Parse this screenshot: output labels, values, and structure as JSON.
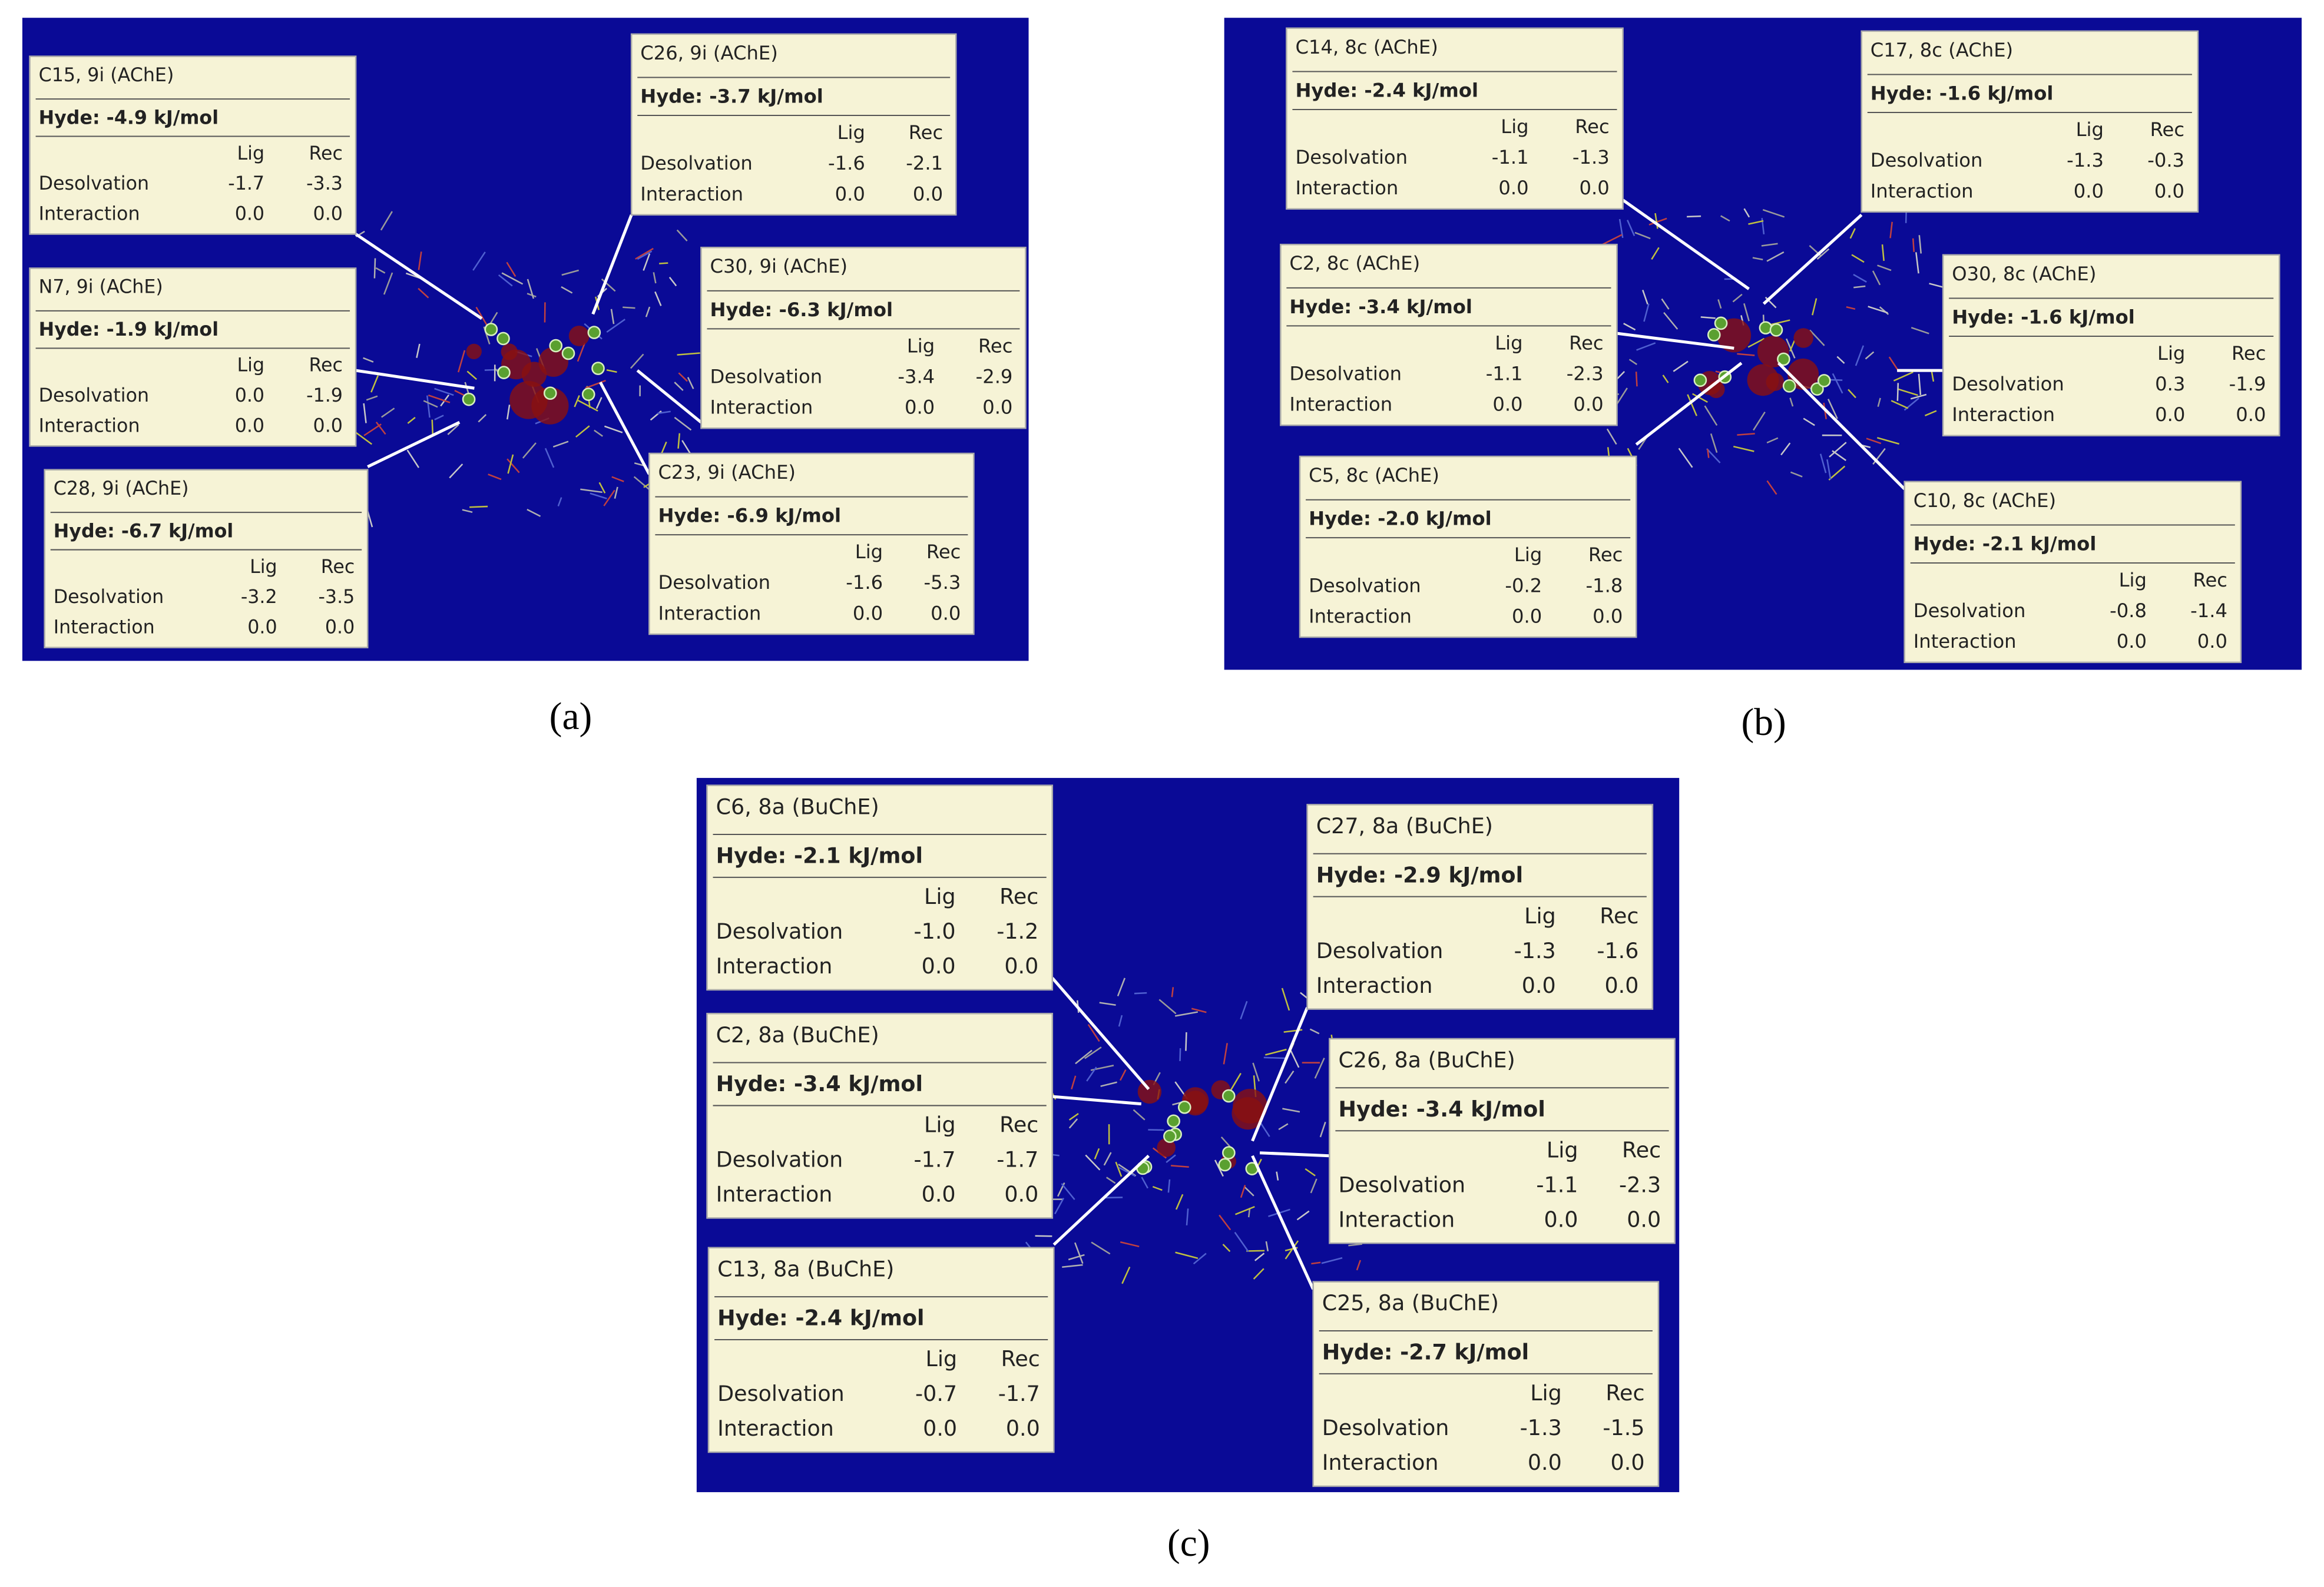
{
  "panels": [
    {
      "label": "(a)",
      "boxes": [
        {
          "title": "C15, 9i (AChE)",
          "hyde": "Hyde: -4.9 kJ/mol",
          "header": [
            "Lig",
            "Rec"
          ],
          "rows": [
            [
              "Desolvation",
              "-1.7",
              "-3.3"
            ],
            [
              "Interaction",
              "0.0",
              "0.0"
            ]
          ]
        },
        {
          "title": "N7, 9i (AChE)",
          "hyde": "Hyde: -1.9 kJ/mol",
          "header": [
            "Lig",
            "Rec"
          ],
          "rows": [
            [
              "Desolvation",
              "0.0",
              "-1.9"
            ],
            [
              "Interaction",
              "0.0",
              "0.0"
            ]
          ]
        },
        {
          "title": "C28, 9i (AChE)",
          "hyde": "Hyde: -6.7 kJ/mol",
          "header": [
            "Lig",
            "Rec"
          ],
          "rows": [
            [
              "Desolvation",
              "-3.2",
              "-3.5"
            ],
            [
              "Interaction",
              "0.0",
              "0.0"
            ]
          ]
        },
        {
          "title": "C26, 9i (AChE)",
          "hyde": "Hyde: -3.7 kJ/mol",
          "header": [
            "Lig",
            "Rec"
          ],
          "rows": [
            [
              "Desolvation",
              "-1.6",
              "-2.1"
            ],
            [
              "Interaction",
              "0.0",
              "0.0"
            ]
          ]
        },
        {
          "title": "C30, 9i (AChE)",
          "hyde": "Hyde: -6.3 kJ/mol",
          "header": [
            "Lig",
            "Rec"
          ],
          "rows": [
            [
              "Desolvation",
              "-3.4",
              "-2.9"
            ],
            [
              "Interaction",
              "0.0",
              "0.0"
            ]
          ]
        },
        {
          "title": "C23, 9i (AChE)",
          "hyde": "Hyde: -6.9 kJ/mol",
          "header": [
            "Lig",
            "Rec"
          ],
          "rows": [
            [
              "Desolvation",
              "-1.6",
              "-5.3"
            ],
            [
              "Interaction",
              "0.0",
              "0.0"
            ]
          ]
        }
      ]
    },
    {
      "label": "(b)",
      "boxes": [
        {
          "title": "C14, 8c (AChE)",
          "hyde": "Hyde: -2.4 kJ/mol",
          "header": [
            "Lig",
            "Rec"
          ],
          "rows": [
            [
              "Desolvation",
              "-1.1",
              "-1.3"
            ],
            [
              "Interaction",
              "0.0",
              "0.0"
            ]
          ]
        },
        {
          "title": "C2, 8c (AChE)",
          "hyde": "Hyde: -3.4 kJ/mol",
          "header": [
            "Lig",
            "Rec"
          ],
          "rows": [
            [
              "Desolvation",
              "-1.1",
              "-2.3"
            ],
            [
              "Interaction",
              "0.0",
              "0.0"
            ]
          ]
        },
        {
          "title": "C5, 8c (AChE)",
          "hyde": "Hyde: -2.0 kJ/mol",
          "header": [
            "Lig",
            "Rec"
          ],
          "rows": [
            [
              "Desolvation",
              "-0.2",
              "-1.8"
            ],
            [
              "Interaction",
              "0.0",
              "0.0"
            ]
          ]
        },
        {
          "title": "C17, 8c (AChE)",
          "hyde": "Hyde: -1.6 kJ/mol",
          "header": [
            "Lig",
            "Rec"
          ],
          "rows": [
            [
              "Desolvation",
              "-1.3",
              "-0.3"
            ],
            [
              "Interaction",
              "0.0",
              "0.0"
            ]
          ]
        },
        {
          "title": "O30, 8c (AChE)",
          "hyde": "Hyde: -1.6 kJ/mol",
          "header": [
            "Lig",
            "Rec"
          ],
          "rows": [
            [
              "Desolvation",
              "0.3",
              "-1.9"
            ],
            [
              "Interaction",
              "0.0",
              "0.0"
            ]
          ]
        },
        {
          "title": "C10, 8c (AChE)",
          "hyde": "Hyde: -2.1 kJ/mol",
          "header": [
            "Lig",
            "Rec"
          ],
          "rows": [
            [
              "Desolvation",
              "-0.8",
              "-1.4"
            ],
            [
              "Interaction",
              "0.0",
              "0.0"
            ]
          ]
        }
      ]
    },
    {
      "label": "(c)",
      "boxes": [
        {
          "title": "C6, 8a (BuChE)",
          "hyde": "Hyde: -2.1 kJ/mol",
          "header": [
            "Lig",
            "Rec"
          ],
          "rows": [
            [
              "Desolvation",
              "-1.0",
              "-1.2"
            ],
            [
              "Interaction",
              "0.0",
              "0.0"
            ]
          ]
        },
        {
          "title": "C2, 8a (BuChE)",
          "hyde": "Hyde: -3.4 kJ/mol",
          "header": [
            "Lig",
            "Rec"
          ],
          "rows": [
            [
              "Desolvation",
              "-1.7",
              "-1.7"
            ],
            [
              "Interaction",
              "0.0",
              "0.0"
            ]
          ]
        },
        {
          "title": "C13, 8a (BuChE)",
          "hyde": "Hyde: -2.4 kJ/mol",
          "header": [
            "Lig",
            "Rec"
          ],
          "rows": [
            [
              "Desolvation",
              "-0.7",
              "-1.7"
            ],
            [
              "Interaction",
              "0.0",
              "0.0"
            ]
          ]
        },
        {
          "title": "C27, 8a (BuChE)",
          "hyde": "Hyde: -2.9 kJ/mol",
          "header": [
            "Lig",
            "Rec"
          ],
          "rows": [
            [
              "Desolvation",
              "-1.3",
              "-1.6"
            ],
            [
              "Interaction",
              "0.0",
              "0.0"
            ]
          ]
        },
        {
          "title": "C26, 8a (BuChE)",
          "hyde": "Hyde: -3.4 kJ/mol",
          "header": [
            "Lig",
            "Rec"
          ],
          "rows": [
            [
              "Desolvation",
              "-1.1",
              "-2.3"
            ],
            [
              "Interaction",
              "0.0",
              "0.0"
            ]
          ]
        },
        {
          "title": "C25, 8a (BuChE)",
          "hyde": "Hyde: -2.7 kJ/mol",
          "header": [
            "Lig",
            "Rec"
          ],
          "rows": [
            [
              "Desolvation",
              "-1.3",
              "-1.5"
            ],
            [
              "Interaction",
              "0.0",
              "0.0"
            ]
          ]
        }
      ]
    }
  ]
}
